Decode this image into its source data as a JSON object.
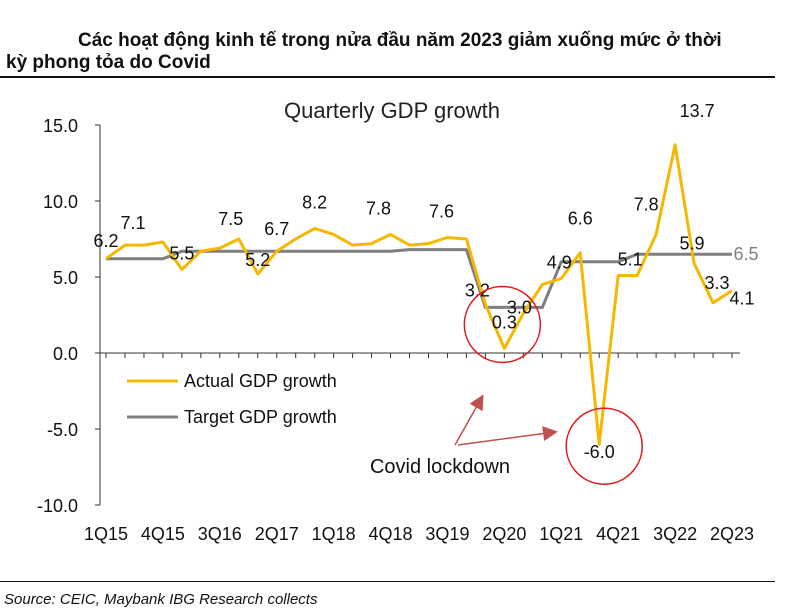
{
  "header": {
    "title_line1": "Các hoạt động kinh tế trong nửa đầu năm 2023 giảm xuống mức ở thời",
    "title_line2": "kỳ phong tỏa do Covid"
  },
  "footer": {
    "source": "Source: CEIC, Maybank IBG Research collects"
  },
  "chart_data": {
    "type": "line",
    "title": "Quarterly GDP growth",
    "xlabel": "",
    "ylabel": "",
    "ylim": [
      -10,
      15
    ],
    "yticks": [
      "15.0",
      "10.0",
      "5.0",
      "0.0",
      "-5.0",
      "-10.0"
    ],
    "ytick_values": [
      15,
      10,
      5,
      0,
      -5,
      -10
    ],
    "x": [
      "1Q15",
      "2Q15",
      "3Q15",
      "4Q15",
      "1Q16",
      "2Q16",
      "3Q16",
      "4Q16",
      "1Q17",
      "2Q17",
      "3Q17",
      "4Q17",
      "1Q18",
      "2Q18",
      "3Q18",
      "4Q18",
      "1Q19",
      "2Q19",
      "3Q19",
      "4Q19",
      "1Q20",
      "2Q20",
      "3Q20",
      "4Q20",
      "1Q21",
      "2Q21",
      "3Q21",
      "4Q21",
      "1Q22",
      "2Q22",
      "3Q22",
      "4Q22",
      "1Q23",
      "2Q23"
    ],
    "x_tick_labels": [
      "1Q15",
      "4Q15",
      "3Q16",
      "2Q17",
      "1Q18",
      "4Q18",
      "3Q19",
      "2Q20",
      "1Q21",
      "4Q21",
      "3Q22",
      "2Q23"
    ],
    "series": [
      {
        "name": "Actual GDP growth",
        "color": "#F5B800",
        "values": [
          6.2,
          7.1,
          7.1,
          7.3,
          5.5,
          6.7,
          6.9,
          7.5,
          5.2,
          6.7,
          7.5,
          8.2,
          7.8,
          7.1,
          7.2,
          7.8,
          7.1,
          7.2,
          7.6,
          7.5,
          3.2,
          0.3,
          2.6,
          4.5,
          4.9,
          6.6,
          -6.0,
          5.1,
          5.1,
          7.8,
          13.7,
          5.9,
          3.3,
          4.1
        ]
      },
      {
        "name": "Target GDP growth",
        "color": "#7F7F7F",
        "values": [
          6.2,
          6.2,
          6.2,
          6.2,
          6.7,
          6.7,
          6.7,
          6.7,
          6.7,
          6.7,
          6.7,
          6.7,
          6.7,
          6.7,
          6.7,
          6.7,
          6.8,
          6.8,
          6.8,
          6.8,
          3.0,
          3.0,
          3.0,
          3.0,
          6.0,
          6.0,
          6.0,
          6.0,
          6.5,
          6.5,
          6.5,
          6.5,
          6.5,
          6.5
        ]
      }
    ],
    "data_labels": [
      {
        "text": "6.2",
        "i": 0,
        "v": 6.2
      },
      {
        "text": "7.1",
        "i": 1,
        "v": 7.1
      },
      {
        "text": "5.5",
        "i": 4,
        "v": 5.5
      },
      {
        "text": "7.5",
        "i": 7,
        "v": 7.5
      },
      {
        "text": "5.2",
        "i": 8,
        "v": 5.2
      },
      {
        "text": "6.7",
        "i": 9,
        "v": 6.7
      },
      {
        "text": "8.2",
        "i": 11,
        "v": 8.2
      },
      {
        "text": "7.8",
        "i": 15,
        "v": 7.8
      },
      {
        "text": "7.6",
        "i": 18,
        "v": 7.6
      },
      {
        "text": "3.2",
        "i": 20,
        "v": 3.2
      },
      {
        "text": "3.0",
        "i": 22,
        "v": 3.0
      },
      {
        "text": "0.3",
        "i": 21,
        "v": 0.3
      },
      {
        "text": "4.9",
        "i": 24,
        "v": 4.9
      },
      {
        "text": "6.6",
        "i": 25,
        "v": 6.6
      },
      {
        "text": "-6.0",
        "i": 26,
        "v": -6.0
      },
      {
        "text": "5.1",
        "i": 27,
        "v": 5.1
      },
      {
        "text": "7.8",
        "i": 29,
        "v": 7.8
      },
      {
        "text": "13.7",
        "i": 30,
        "v": 13.7
      },
      {
        "text": "5.9",
        "i": 31,
        "v": 5.9
      },
      {
        "text": "3.3",
        "i": 32,
        "v": 3.3
      },
      {
        "text": "4.1",
        "i": 33,
        "v": 4.1
      },
      {
        "text": "6.5",
        "i": 33,
        "v": 6.5,
        "color": "#7F7F7F"
      }
    ],
    "annotation": "Covid lockdown",
    "highlight_circles": [
      {
        "i": 21,
        "v": 0.3
      },
      {
        "i": 26,
        "v": -6.0
      }
    ],
    "legend_position": "left-middle",
    "grid": false
  }
}
